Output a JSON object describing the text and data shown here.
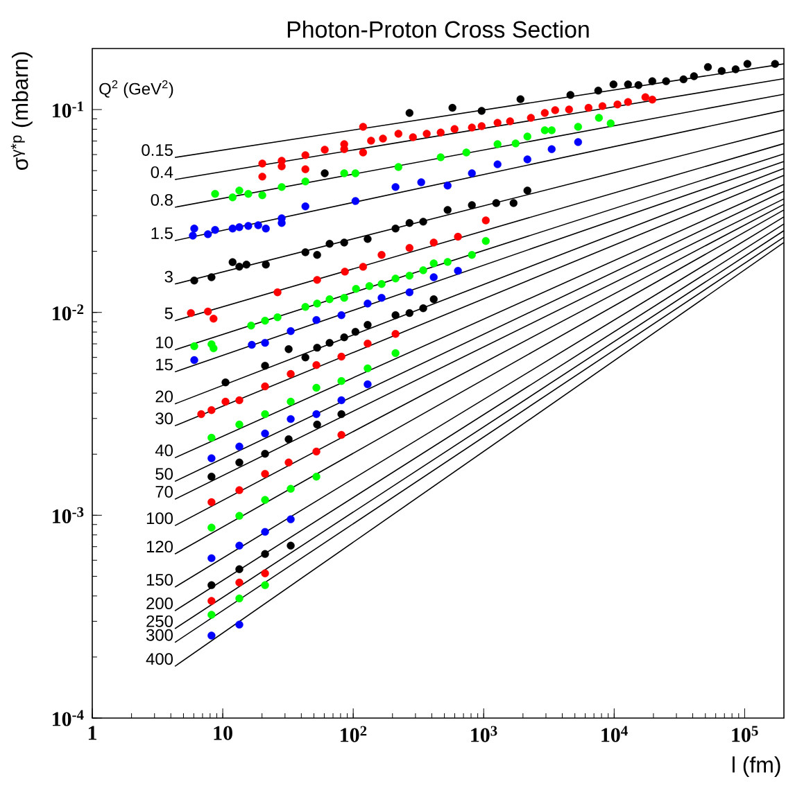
{
  "chart_data": {
    "type": "scatter",
    "title": "Photon-Proton Cross Section",
    "xlabel": "l (fm)",
    "ylabel": "σ$^{γ*p}$ (mbarn)",
    "legend_title": "Q$^{2}$ (GeV$^{2}$)",
    "log": "xy",
    "xlim": [
      1,
      200000
    ],
    "ylim": [
      0.0001,
      0.2
    ],
    "xticks": [
      1,
      10,
      {
        "value": 100,
        "label": "10$^{2}$"
      },
      {
        "value": 1000,
        "label": "10$^{3}$"
      },
      {
        "value": 10000,
        "label": "10$^{4}$"
      },
      {
        "value": 100000,
        "label": "10$^{5}$"
      }
    ],
    "yticks": [
      {
        "value": 0.0001,
        "label": "10$^{-4}$"
      },
      {
        "value": 0.001,
        "label": "10$^{-3}$"
      },
      {
        "value": 0.01,
        "label": "10$^{-2}$"
      },
      {
        "value": 0.1,
        "label": "10$^{-1}$"
      }
    ],
    "series": [
      {
        "type": "line",
        "name": "0.15",
        "color": "#000000",
        "x": [
          4.3,
          200000
        ],
        "values": [
          0.0581,
          0.168
        ]
      },
      {
        "type": "line",
        "name": "0.4",
        "color": "#000000",
        "x": [
          4.3,
          200000
        ],
        "values": [
          0.0452,
          0.142
        ]
      },
      {
        "type": "line",
        "name": "0.8",
        "color": "#000000",
        "x": [
          4.3,
          200000
        ],
        "values": [
          0.033,
          0.119
        ]
      },
      {
        "type": "line",
        "name": "1.5",
        "color": "#000000",
        "x": [
          4.3,
          200000
        ],
        "values": [
          0.0226,
          0.0992
        ]
      },
      {
        "type": "line",
        "name": "3",
        "color": "#000000",
        "x": [
          4.3,
          200000
        ],
        "values": [
          0.0138,
          0.0796
        ]
      },
      {
        "type": "line",
        "name": "5",
        "color": "#000000",
        "x": [
          4.3,
          200000
        ],
        "values": [
          0.0091,
          0.068
        ]
      },
      {
        "type": "line",
        "name": "10",
        "color": "#000000",
        "x": [
          4.3,
          200000
        ],
        "values": [
          0.00654,
          0.0605
        ]
      },
      {
        "type": "line",
        "name": "15",
        "color": "#000000",
        "x": [
          4.3,
          200000
        ],
        "values": [
          0.00509,
          0.0555
        ]
      },
      {
        "type": "line",
        "name": "20",
        "color": "#000000",
        "x": [
          4.3,
          200000
        ],
        "values": [
          0.00354,
          0.0513
        ]
      },
      {
        "type": "line",
        "name": "30",
        "color": "#000000",
        "x": [
          4.3,
          200000
        ],
        "values": [
          0.00276,
          0.0474
        ]
      },
      {
        "type": "line",
        "name": "40",
        "color": "#000000",
        "x": [
          4.3,
          200000
        ],
        "values": [
          0.00192,
          0.0428
        ]
      },
      {
        "type": "line",
        "name": "50",
        "color": "#000000",
        "x": [
          4.3,
          200000
        ],
        "values": [
          0.00147,
          0.0396
        ]
      },
      {
        "type": "line",
        "name": "70",
        "color": "#000000",
        "x": [
          4.3,
          200000
        ],
        "values": [
          0.0012,
          0.0363
        ]
      },
      {
        "type": "line",
        "name": "100",
        "color": "#000000",
        "x": [
          4.3,
          200000
        ],
        "values": [
          0.000889,
          0.0341
        ]
      },
      {
        "type": "line",
        "name": "120",
        "color": "#000000",
        "x": [
          4.3,
          200000
        ],
        "values": [
          0.000644,
          0.032
        ]
      },
      {
        "type": "line",
        "name": "150",
        "color": "#000000",
        "x": [
          4.3,
          200000
        ],
        "values": [
          0.000442,
          0.0296
        ]
      },
      {
        "type": "line",
        "name": "200",
        "color": "#000000",
        "x": [
          4.3,
          200000
        ],
        "values": [
          0.000338,
          0.0273
        ]
      },
      {
        "type": "line",
        "name": "250",
        "color": "#000000",
        "x": [
          4.3,
          200000
        ],
        "values": [
          0.000276,
          0.0253
        ]
      },
      {
        "type": "line",
        "name": "300",
        "color": "#000000",
        "x": [
          4.3,
          200000
        ],
        "values": [
          0.000236,
          0.0235
        ]
      },
      {
        "type": "line",
        "name": "400",
        "color": "#000000",
        "x": [
          4.3,
          200000
        ],
        "values": [
          0.00018,
          0.0221
        ]
      },
      {
        "marker": "circle",
        "color": "#000000",
        "x": [
          270,
          576,
          964,
          1914,
          4620,
          7550,
          9880,
          12770,
          15350,
          19600,
          25000,
          34000,
          40900,
          52300,
          66700,
          85300,
          105000,
          171000,
          60.5,
          6.05,
          8.2,
          11.9,
          13.4,
          15.2,
          21.4,
          43,
          52.9,
          65.9,
          85.3,
          129,
          211,
          270,
          344,
          529,
          812,
          1247,
          1694,
          2163,
          10.5,
          21.1,
          32,
          43,
          52.9,
          65.9,
          85.3,
          104,
          129,
          211,
          270,
          344,
          414,
          8.2,
          13.4,
          21.1,
          32,
          52.9,
          81.2,
          8.2,
          13.4,
          21.1,
          33.2
        ],
        "values": [
          0.0962,
          0.102,
          0.0985,
          0.1125,
          0.118,
          0.124,
          0.133,
          0.133,
          0.132,
          0.138,
          0.138,
          0.141,
          0.146,
          0.162,
          0.155,
          0.158,
          0.168,
          0.168,
          0.0485,
          0.01435,
          0.0149,
          0.0177,
          0.0168,
          0.0172,
          0.0172,
          0.0198,
          0.0192,
          0.0218,
          0.0221,
          0.023,
          0.0259,
          0.0276,
          0.028,
          0.032,
          0.0338,
          0.0346,
          0.0346,
          0.0399,
          0.00452,
          0.00546,
          0.00659,
          0.006,
          0.0067,
          0.00708,
          0.00754,
          0.00802,
          0.00868,
          0.00969,
          0.00993,
          0.01048,
          0.01161,
          0.00155,
          0.00182,
          0.00201,
          0.00237,
          0.0028,
          0.00315,
          0.000452,
          0.000542,
          0.000644,
          0.000708
        ]
      },
      {
        "marker": "circle",
        "color": "#ff0000",
        "x": [
          20.1,
          28.3,
          43,
          60.5,
          85.3,
          119,
          119,
          137,
          169,
          222,
          287,
          366,
          468,
          598,
          812,
          964,
          1277,
          1592,
          2300,
          2940,
          3530,
          4510,
          6360,
          8130,
          10600,
          12770,
          17350,
          19600,
          20.1,
          28.3,
          43,
          85.3,
          5.7,
          7.7,
          8.5,
          26.3,
          52.9,
          86.3,
          119,
          165,
          270,
          414,
          635,
          1038,
          6.84,
          8.2,
          10.5,
          13.4,
          21.1,
          33.2,
          52.2,
          81.2,
          129,
          211,
          8.2,
          13.4,
          21.1,
          32,
          52.2,
          81.2,
          8.2,
          13.4,
          21.1
        ],
        "values": [
          0.0542,
          0.0559,
          0.0596,
          0.0634,
          0.0675,
          0.0822,
          0.0614,
          0.0702,
          0.0719,
          0.076,
          0.073,
          0.076,
          0.0771,
          0.0802,
          0.0815,
          0.0828,
          0.0861,
          0.0875,
          0.091,
          0.0962,
          0.0993,
          0.1,
          0.102,
          0.104,
          0.106,
          0.109,
          0.115,
          0.112,
          0.0467,
          0.0525,
          0.0508,
          0.0638,
          0.00993,
          0.0101,
          0.00931,
          0.01256,
          0.01446,
          0.01589,
          0.01679,
          0.0192,
          0.0208,
          0.0221,
          0.0236,
          0.0284,
          0.00315,
          0.0033,
          0.00363,
          0.00369,
          0.00432,
          0.00497,
          0.0055,
          0.00605,
          0.00702,
          0.00783,
          0.00116,
          0.00133,
          0.0016,
          0.00182,
          0.00206,
          0.00249,
          0.000378,
          0.000466,
          0.000517
        ]
      },
      {
        "marker": "circle",
        "color": "#00ff00",
        "x": [
          8.74,
          11.9,
          13.4,
          15.7,
          20.1,
          28.3,
          43,
          85.3,
          104,
          222,
          468,
          736,
          1277,
          1757,
          2163,
          2940,
          3320,
          5290,
          7640,
          9400,
          6.05,
          8.2,
          8.5,
          16.5,
          21.1,
          26.3,
          43,
          52.9,
          65.9,
          85.3,
          105,
          133,
          165,
          211,
          270,
          344,
          414,
          529,
          812,
          1038,
          8.2,
          13.4,
          21.1,
          33.2,
          52.2,
          81.2,
          129,
          211,
          8.2,
          13.4,
          21.1,
          33.2,
          52.2,
          8.2,
          13.4,
          21.1
        ],
        "values": [
          0.0384,
          0.0369,
          0.0399,
          0.0384,
          0.0378,
          0.0415,
          0.0442,
          0.0485,
          0.0485,
          0.0521,
          0.0582,
          0.0614,
          0.0675,
          0.0681,
          0.0736,
          0.0791,
          0.0791,
          0.0822,
          0.091,
          0.0855,
          0.00681,
          0.00697,
          0.00665,
          0.00861,
          0.0091,
          0.00946,
          0.01064,
          0.01106,
          0.01161,
          0.0118,
          0.01306,
          0.01348,
          0.0138,
          0.01469,
          0.01517,
          0.01614,
          0.01745,
          0.01774,
          0.0192,
          0.0225,
          0.00241,
          0.0028,
          0.00315,
          0.00363,
          0.00425,
          0.00459,
          0.0053,
          0.0063,
          0.000869,
          0.000993,
          0.00119,
          0.00135,
          0.00155,
          0.000323,
          0.000389,
          0.000452
        ]
      },
      {
        "marker": "circle",
        "color": "#0000ff",
        "x": [
          6.05,
          5.9,
          7.7,
          8.74,
          11.9,
          13.4,
          15.7,
          18.7,
          21.4,
          28.3,
          28.3,
          43,
          104,
          211,
          332,
          529,
          812,
          1277,
          2163,
          3320,
          5290,
          6.05,
          16.7,
          21.1,
          33.2,
          52.2,
          81.2,
          129,
          165,
          270,
          414,
          635,
          8.2,
          13.4,
          21.1,
          33.2,
          52.2,
          81.2,
          129,
          8.2,
          13.4,
          21.1,
          33.2,
          8.2,
          13.4
        ],
        "values": [
          0.0259,
          0.0239,
          0.0243,
          0.0255,
          0.0259,
          0.0263,
          0.0267,
          0.0269,
          0.0259,
          0.0291,
          0.0276,
          0.0333,
          0.0354,
          0.0415,
          0.0438,
          0.0422,
          0.0485,
          0.0537,
          0.0568,
          0.0638,
          0.0691,
          0.00582,
          0.00692,
          0.00708,
          0.00809,
          0.00917,
          0.00969,
          0.01106,
          0.0118,
          0.01256,
          0.0149,
          0.01603,
          0.00191,
          0.00218,
          0.00253,
          0.00298,
          0.00315,
          0.00369,
          0.00442,
          0.000614,
          0.000708,
          0.000828,
          0.000955,
          0.000255,
          0.000289
        ]
      }
    ]
  }
}
